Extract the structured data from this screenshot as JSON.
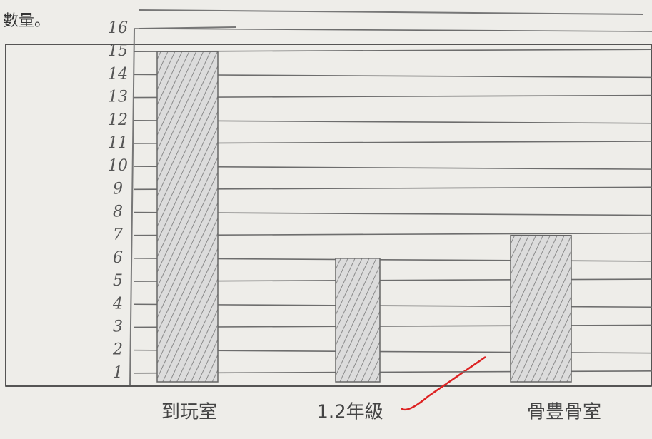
{
  "title": "數量。",
  "chart_data": {
    "type": "bar",
    "categories": [
      "到玩室",
      "1.2年級",
      "骨豊骨室"
    ],
    "values": [
      15,
      6,
      7
    ],
    "color": "#8a8a8a",
    "ylim": [
      0,
      16
    ],
    "yticks": [
      1,
      2,
      3,
      4,
      5,
      6,
      7,
      8,
      9,
      10,
      11,
      12,
      13,
      14,
      15,
      16
    ],
    "grid": true
  }
}
